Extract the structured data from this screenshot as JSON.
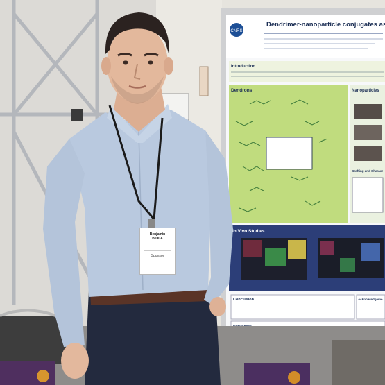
{
  "badge": {
    "name": "Benjamin\nBIOLA",
    "role": "Sponsor"
  },
  "poster": {
    "title": "Dendrimer-nanoparticle conjugates as Nanom",
    "logo": "CNRS",
    "sections": {
      "introduction": "Introduction",
      "dendrons": "Dendrons",
      "nanoparticles": "Nanoparticles",
      "grafting": "Grafting and Charact",
      "in_vivo": "In Vivo Studies",
      "conclusion": "Conclusion",
      "acknowledgements": "Acknowledgeme",
      "references": "References"
    }
  },
  "colors": {
    "shirt": "#b9c9df",
    "poster_green": "#bcd97a",
    "poster_header": "#1f4e8c",
    "wall": "#e8e6e0"
  }
}
